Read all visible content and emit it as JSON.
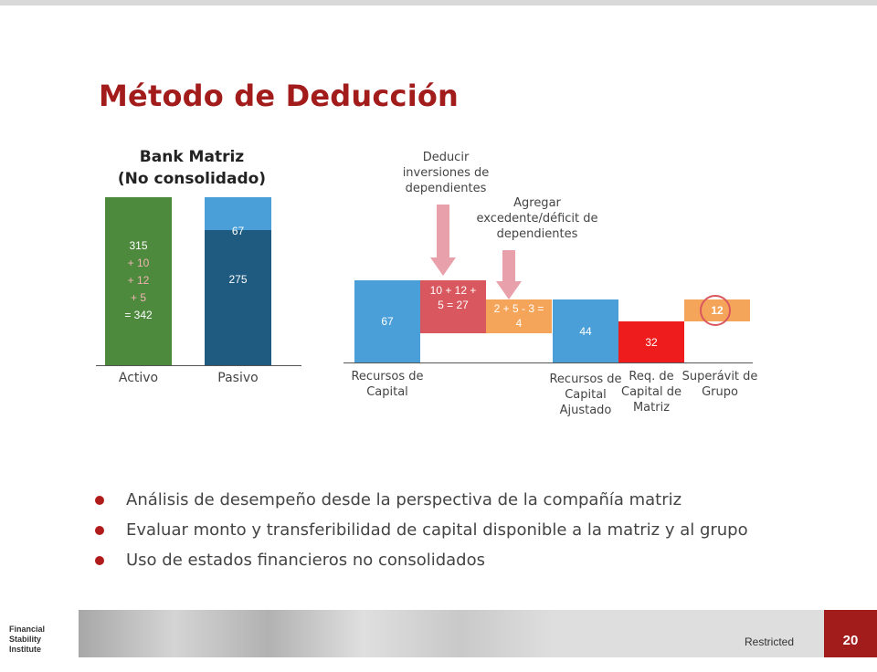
{
  "title": "Método de Deducción",
  "bank": {
    "title_line1": "Bank Matriz",
    "title_line2": "(No consolidado)"
  },
  "footer": {
    "logo_line1": "Financial Stability",
    "logo_line2": "Institute",
    "restricted": "Restricted",
    "page_number": "20"
  },
  "bullets": [
    "Análisis de desempeño desde la perspectiva de la compañía matriz",
    "Evaluar monto y transferibilidad de capital disponible a la matriz y al grupo",
    "Uso de estados financieros no consolidados"
  ],
  "colors": {
    "title_red": "#a31c1c",
    "green": "#4e8a3e",
    "dark_blue": "#1f5a80",
    "light_blue": "#4a9fd8",
    "rose": "#d9575e",
    "light_orange": "#f5a55a",
    "red": "#ee1c1c",
    "arrow_pink": "#e8a0ab"
  },
  "chart_data": [
    {
      "type": "bar",
      "title": "Bank Matriz (No consolidado)",
      "categories": [
        "Activo",
        "Pasivo"
      ],
      "activo_label": [
        "315",
        "+ 10",
        "+ 12",
        "+ 5",
        "= 342"
      ],
      "activo_value": 342,
      "pasivo_segments": [
        {
          "label": "275",
          "value": 275,
          "color": "#1f5a80"
        },
        {
          "label": "67",
          "value": 67,
          "color": "#4a9fd8"
        }
      ]
    },
    {
      "type": "waterfall",
      "steps": [
        {
          "category": "Recursos de Capital",
          "label": "67",
          "value": 67,
          "kind": "total",
          "color": "#4a9fd8"
        },
        {
          "category": "",
          "label": "10 + 12 + 5 = 27",
          "value": -27,
          "kind": "delta",
          "color": "#d9575e"
        },
        {
          "category": "",
          "label": "2 + 5 - 3 = 4",
          "value": 4,
          "kind": "delta",
          "color": "#f5a55a"
        },
        {
          "category": "Recursos de Capital Ajustado",
          "label": "44",
          "value": 44,
          "kind": "total",
          "color": "#4a9fd8"
        },
        {
          "category": "Req. de Capital de Matriz",
          "label": "32",
          "value": -32,
          "kind": "delta",
          "color": "#ee1c1c"
        },
        {
          "category": "Superávit de Grupo",
          "label": "12",
          "value": 12,
          "kind": "total",
          "color": "#f5a55a"
        }
      ],
      "annotations": [
        {
          "text": "Deducir inversiones de dependientes",
          "target": 1
        },
        {
          "text": "Agregar excedente/déficit de dependientes",
          "target": 2
        }
      ]
    }
  ]
}
